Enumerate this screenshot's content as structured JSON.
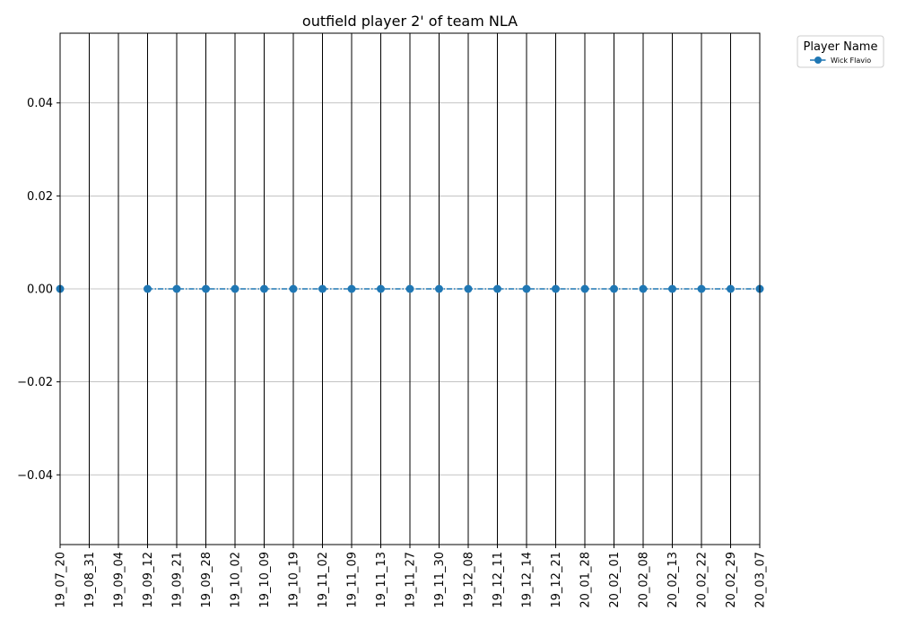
{
  "chart_data": {
    "type": "line",
    "title": "outfield player 2' of team NLA",
    "xlabel": "",
    "ylabel": "",
    "categories": [
      "19_07_20",
      "19_08_31",
      "19_09_04",
      "19_09_12",
      "19_09_21",
      "19_09_28",
      "19_10_02",
      "19_10_09",
      "19_10_19",
      "19_11_02",
      "19_11_09",
      "19_11_13",
      "19_11_27",
      "19_11_30",
      "19_12_08",
      "19_12_11",
      "19_12_14",
      "19_12_21",
      "20_01_28",
      "20_02_01",
      "20_02_08",
      "20_02_13",
      "20_02_22",
      "20_02_29",
      "20_03_07"
    ],
    "ylim": [
      -0.055,
      0.055
    ],
    "yticks": [
      -0.04,
      -0.02,
      0.0,
      0.02,
      0.04
    ],
    "ytick_labels": [
      "−0.04",
      "−0.02",
      "0.00",
      "0.02",
      "0.04"
    ],
    "grid": "horizontal at y ticks; black vertical line at every x category",
    "legend": {
      "title": "Player Name",
      "placement": "outside upper right"
    },
    "series": [
      {
        "name": "Wick Flavio",
        "color": "#1f77b4",
        "linestyle": "dash-dot",
        "marker": "circle",
        "values": [
          0,
          null,
          null,
          0,
          0,
          0,
          0,
          0,
          0,
          0,
          0,
          0,
          0,
          0,
          0,
          0,
          0,
          0,
          0,
          0,
          0,
          0,
          0,
          0,
          0
        ]
      }
    ]
  }
}
